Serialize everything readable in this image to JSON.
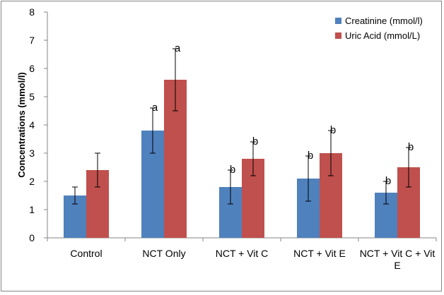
{
  "chart_data": {
    "type": "bar",
    "title": "",
    "xlabel": "",
    "ylabel": "Concentrations (mmol/l)",
    "ylim": [
      0,
      8
    ],
    "yticks": [
      0,
      1,
      2,
      3,
      4,
      5,
      6,
      7,
      8
    ],
    "grid": false,
    "legend_position": "top-right",
    "categories": [
      "Control",
      "NCT Only",
      "NCT + Vit C",
      "NCT + Vit E",
      "NCT + Vit C + Vit E"
    ],
    "series": [
      {
        "name": "Creatinine (mmol/l)",
        "color": "#4f81bd",
        "values": [
          1.5,
          3.8,
          1.8,
          2.1,
          1.6
        ],
        "error": [
          0.3,
          0.8,
          0.6,
          0.8,
          0.4
        ],
        "annotations": [
          "",
          "a",
          "b",
          "b",
          "b"
        ]
      },
      {
        "name": "Uric Acid (mmol/L)",
        "color": "#c0504d",
        "values": [
          2.4,
          5.6,
          2.8,
          3.0,
          2.5
        ],
        "error": [
          0.6,
          1.1,
          0.6,
          0.8,
          0.7
        ],
        "annotations": [
          "",
          "a",
          "b",
          "b",
          "b"
        ]
      }
    ]
  }
}
